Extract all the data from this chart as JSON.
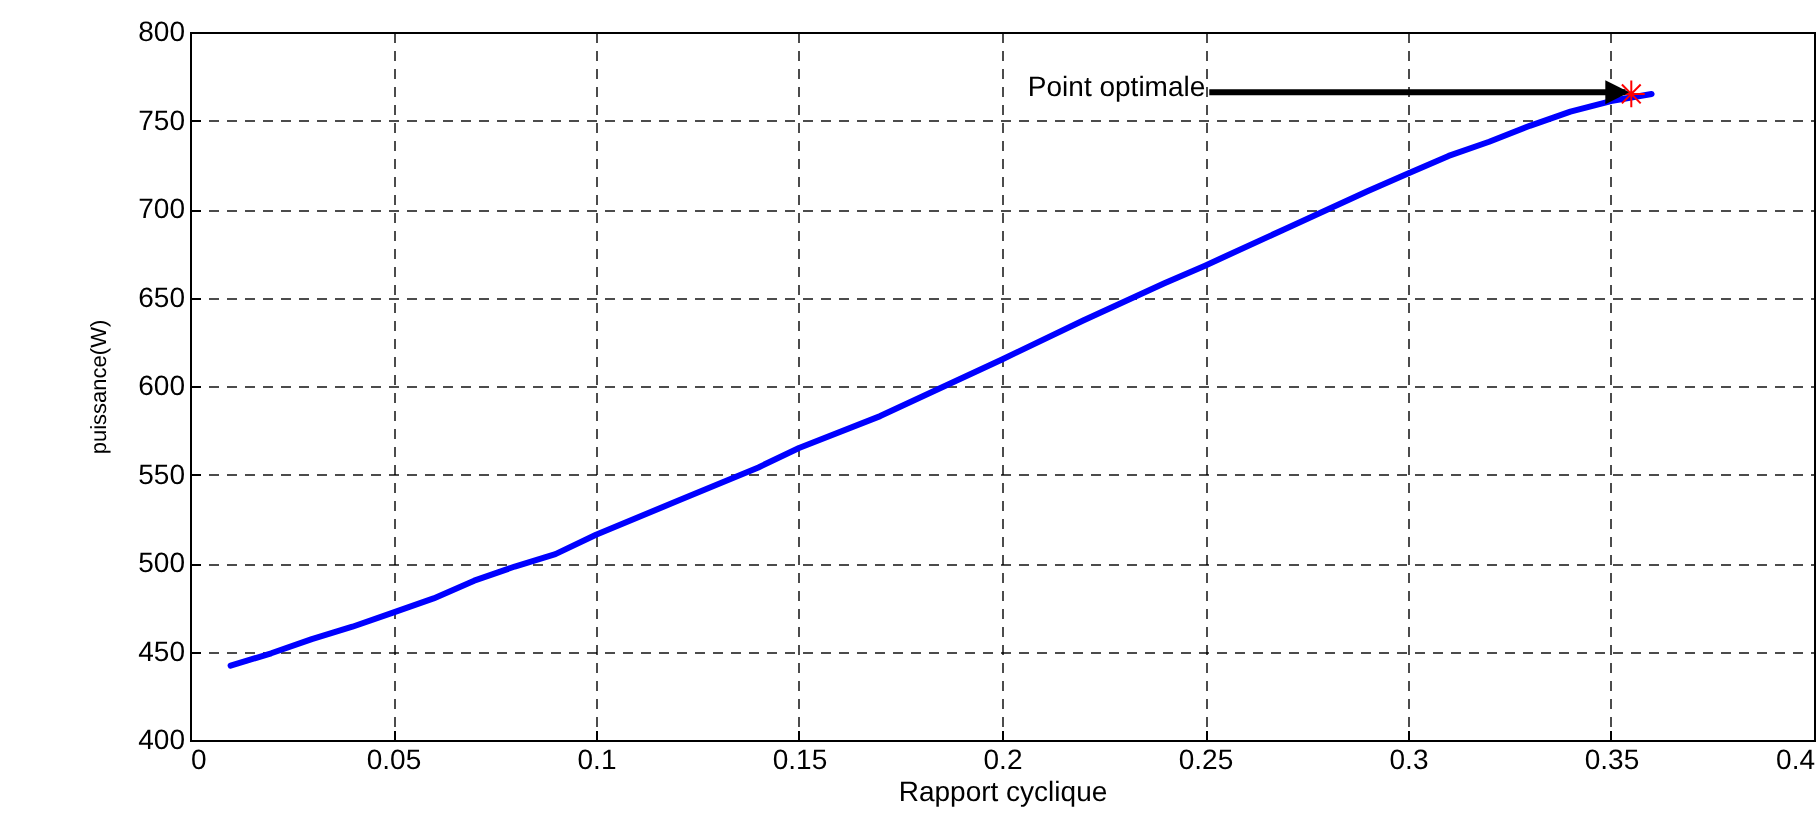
{
  "chart_data": {
    "type": "line",
    "xlabel": "Rapport cyclique",
    "ylabel": "puissance(W)",
    "xlim": [
      0,
      0.4
    ],
    "xticks": [
      0,
      0.05,
      0.1,
      0.15,
      0.2,
      0.25,
      0.3,
      0.35,
      0.4
    ],
    "ylim": [
      400,
      800
    ],
    "yticks": [
      400,
      450,
      500,
      550,
      600,
      650,
      700,
      750,
      800
    ],
    "grid": true,
    "line_style": "solid",
    "series": [
      {
        "color": "#0000ff",
        "marker": "none",
        "x": [
          0.01,
          0.02,
          0.03,
          0.04,
          0.05,
          0.06,
          0.07,
          0.08,
          0.09,
          0.1,
          0.12,
          0.14,
          0.15,
          0.17,
          0.2,
          0.22,
          0.24,
          0.25,
          0.27,
          0.29,
          0.3,
          0.31,
          0.32,
          0.33,
          0.34,
          0.35,
          0.36
        ],
        "values": [
          442,
          449,
          457,
          464,
          472,
          480,
          490,
          498,
          505,
          516,
          535,
          554,
          565,
          583,
          615,
          637,
          658,
          668,
          689,
          710,
          720,
          730,
          738,
          747,
          755,
          761,
          765
        ]
      },
      {
        "type": "scatter",
        "color": "#ff0000",
        "marker": "cross",
        "x": [
          0.355
        ],
        "values": [
          765
        ]
      }
    ],
    "annotations": [
      {
        "text": "Point optimale",
        "x": 0.355,
        "y": 766
      }
    ]
  }
}
